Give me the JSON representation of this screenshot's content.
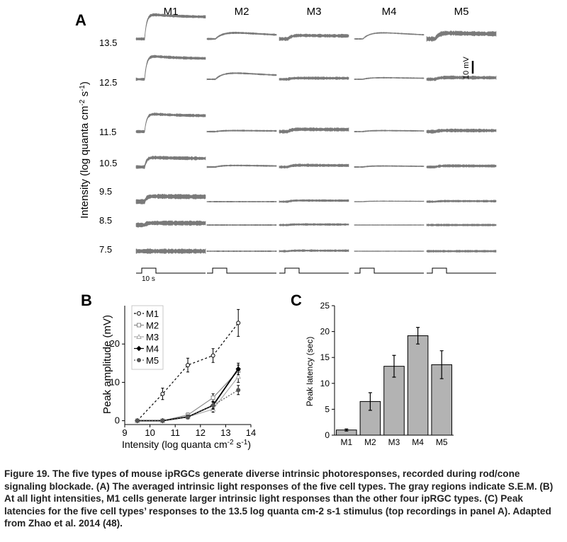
{
  "panel_a": {
    "letter": "A",
    "columns": [
      "M1",
      "M2",
      "M3",
      "M4",
      "M5"
    ],
    "intensities": [
      "13.5",
      "12.5",
      "11.5",
      "10.5",
      "9.5",
      "8.5",
      "7.5"
    ],
    "ylabel": "Intensity (log quanta cm",
    "ylabel_sup1": "-2",
    "ylabel_mid": " s",
    "ylabel_sup2": "-1",
    "ylabel_end": ")",
    "scale_label": "10 mV",
    "stim_label": "10 s",
    "trace_color": "#7a7a7a"
  },
  "chart_data": [
    {
      "type": "line",
      "panel": "B",
      "xlabel": "Intensity (log quanta cm",
      "xlabel_sup1": "-2",
      "xlabel_mid": " s",
      "xlabel_sup2": "-1",
      "xlabel_end": ")",
      "ylabel": "Peak amplitude (mV)",
      "xlim": [
        9,
        14
      ],
      "ylim": [
        -1,
        30
      ],
      "xticks": [
        "9",
        "10",
        "11",
        "12",
        "13",
        "14"
      ],
      "yticks": [
        "0",
        "10",
        "20"
      ],
      "x": [
        9.5,
        10.5,
        11.5,
        12.5,
        13.5
      ],
      "legend_position": "top-left",
      "series": [
        {
          "name": "M1",
          "values": [
            0,
            7,
            14.5,
            17,
            25.5
          ],
          "errors": [
            0.3,
            1.5,
            1.8,
            1.8,
            3.5
          ]
        },
        {
          "name": "M2",
          "values": [
            0,
            0,
            1.5,
            6,
            13
          ],
          "errors": [
            0.2,
            0.3,
            0.5,
            1,
            1.5
          ]
        },
        {
          "name": "M3",
          "values": [
            0,
            0,
            1,
            3,
            11.5
          ],
          "errors": [
            0.2,
            0.3,
            0.5,
            0.8,
            1.5
          ]
        },
        {
          "name": "M4",
          "values": [
            0,
            0,
            1,
            4,
            13.5
          ],
          "errors": [
            0.2,
            0.3,
            0.5,
            1,
            1.5
          ]
        },
        {
          "name": "M5",
          "values": [
            0,
            0,
            1,
            4,
            8
          ],
          "errors": [
            0.2,
            0.3,
            0.4,
            0.8,
            1.2
          ]
        }
      ]
    },
    {
      "type": "bar",
      "panel": "C",
      "ylabel": "Peak latency (sec)",
      "ylim": [
        0,
        25
      ],
      "yticks": [
        "0",
        "5",
        "10",
        "15",
        "20",
        "25"
      ],
      "categories": [
        "M1",
        "M2",
        "M3",
        "M4",
        "M5"
      ],
      "values": [
        1,
        6.5,
        13.3,
        19.2,
        13.6
      ],
      "errors": [
        0.2,
        1.7,
        2.1,
        1.6,
        2.7
      ],
      "bar_color": "#b3b3b3"
    }
  ],
  "labels": {
    "b": "B",
    "c": "C"
  },
  "caption": "Figure 19. The five types of mouse ipRGCs generate diverse intrinsic photoresponses, recorded during rod/cone signaling blockade. (A) The averaged intrinsic light responses of the five cell types. The gray regions indicate S.E.M. (B) At all light intensities, M1 cells generate larger intrinsic light responses than the other four ipRGC types. (C) Peak latencies for the five cell types’ responses to the 13.5 log quanta cm-2 s-1 stimulus (top recordings in panel A). Adapted from Zhao et al. 2014 (48)."
}
